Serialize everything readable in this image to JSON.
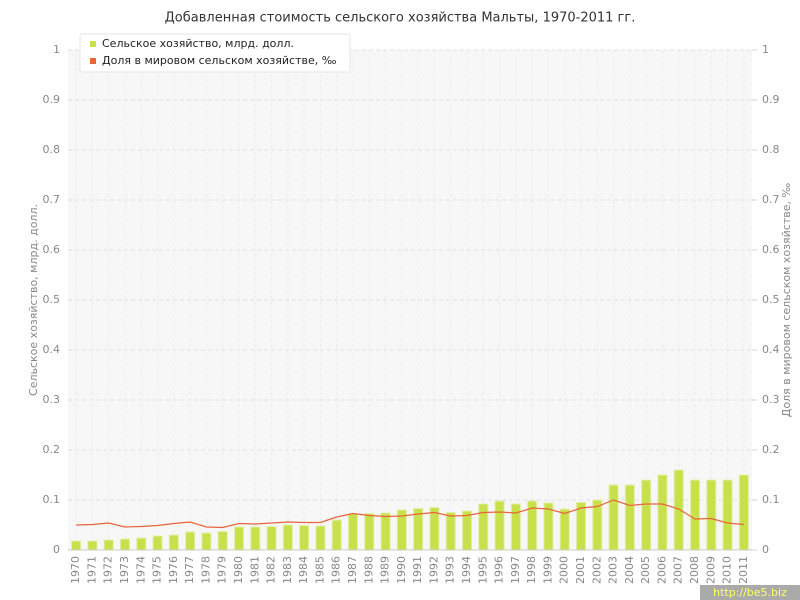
{
  "chart_data": {
    "type": "bar",
    "title": "Добавленная стоимость сельского хозяйства Мальты, 1970-2011 гг.",
    "y_label": "Сельское хозяйство, млрд. долл.",
    "y2_label": "Доля в мировом сельском хозяйстве, ‰",
    "watermark": "http://be5.biz",
    "categories": [
      "1970",
      "1971",
      "1972",
      "1973",
      "1974",
      "1975",
      "1976",
      "1977",
      "1978",
      "1979",
      "1980",
      "1981",
      "1982",
      "1983",
      "1984",
      "1985",
      "1986",
      "1987",
      "1988",
      "1989",
      "1990",
      "1991",
      "1992",
      "1993",
      "1994",
      "1995",
      "1996",
      "1997",
      "1998",
      "1999",
      "2000",
      "2001",
      "2002",
      "2003",
      "2004",
      "2005",
      "2006",
      "2007",
      "2008",
      "2009",
      "2010",
      "2011"
    ],
    "series": [
      {
        "name": "Сельское хозяйство, млрд. долл.",
        "color": "#c8e04c",
        "type": "bar",
        "values": [
          0.018,
          0.018,
          0.02,
          0.022,
          0.024,
          0.028,
          0.03,
          0.036,
          0.034,
          0.037,
          0.046,
          0.046,
          0.047,
          0.05,
          0.049,
          0.048,
          0.06,
          0.072,
          0.073,
          0.074,
          0.08,
          0.083,
          0.085,
          0.075,
          0.078,
          0.092,
          0.098,
          0.092,
          0.098,
          0.094,
          0.082,
          0.095,
          0.1,
          0.13,
          0.13,
          0.14,
          0.15,
          0.16,
          0.14,
          0.14,
          0.14,
          0.15
        ]
      },
      {
        "name": "Доля в мировом сельском хозяйстве, ‰",
        "color": "#e8643c",
        "type": "line",
        "axis": "y2",
        "values": [
          0.05,
          0.051,
          0.054,
          0.046,
          0.047,
          0.049,
          0.053,
          0.056,
          0.046,
          0.045,
          0.053,
          0.052,
          0.054,
          0.056,
          0.055,
          0.055,
          0.066,
          0.073,
          0.069,
          0.067,
          0.068,
          0.072,
          0.075,
          0.068,
          0.069,
          0.075,
          0.076,
          0.074,
          0.084,
          0.082,
          0.073,
          0.084,
          0.087,
          0.1,
          0.089,
          0.092,
          0.092,
          0.082,
          0.062,
          0.063,
          0.054,
          0.051
        ]
      }
    ],
    "ylim": [
      0,
      1
    ],
    "yticks": [
      0,
      0.1,
      0.2,
      0.3,
      0.4,
      0.5,
      0.6,
      0.7,
      0.8,
      0.9,
      1
    ],
    "y2lim": [
      0,
      1
    ],
    "y2ticks": [
      0,
      0.1,
      0.2,
      0.3,
      0.4,
      0.5,
      0.6,
      0.7,
      0.8,
      0.9,
      1
    ],
    "grid": true,
    "legend": "top-left"
  }
}
